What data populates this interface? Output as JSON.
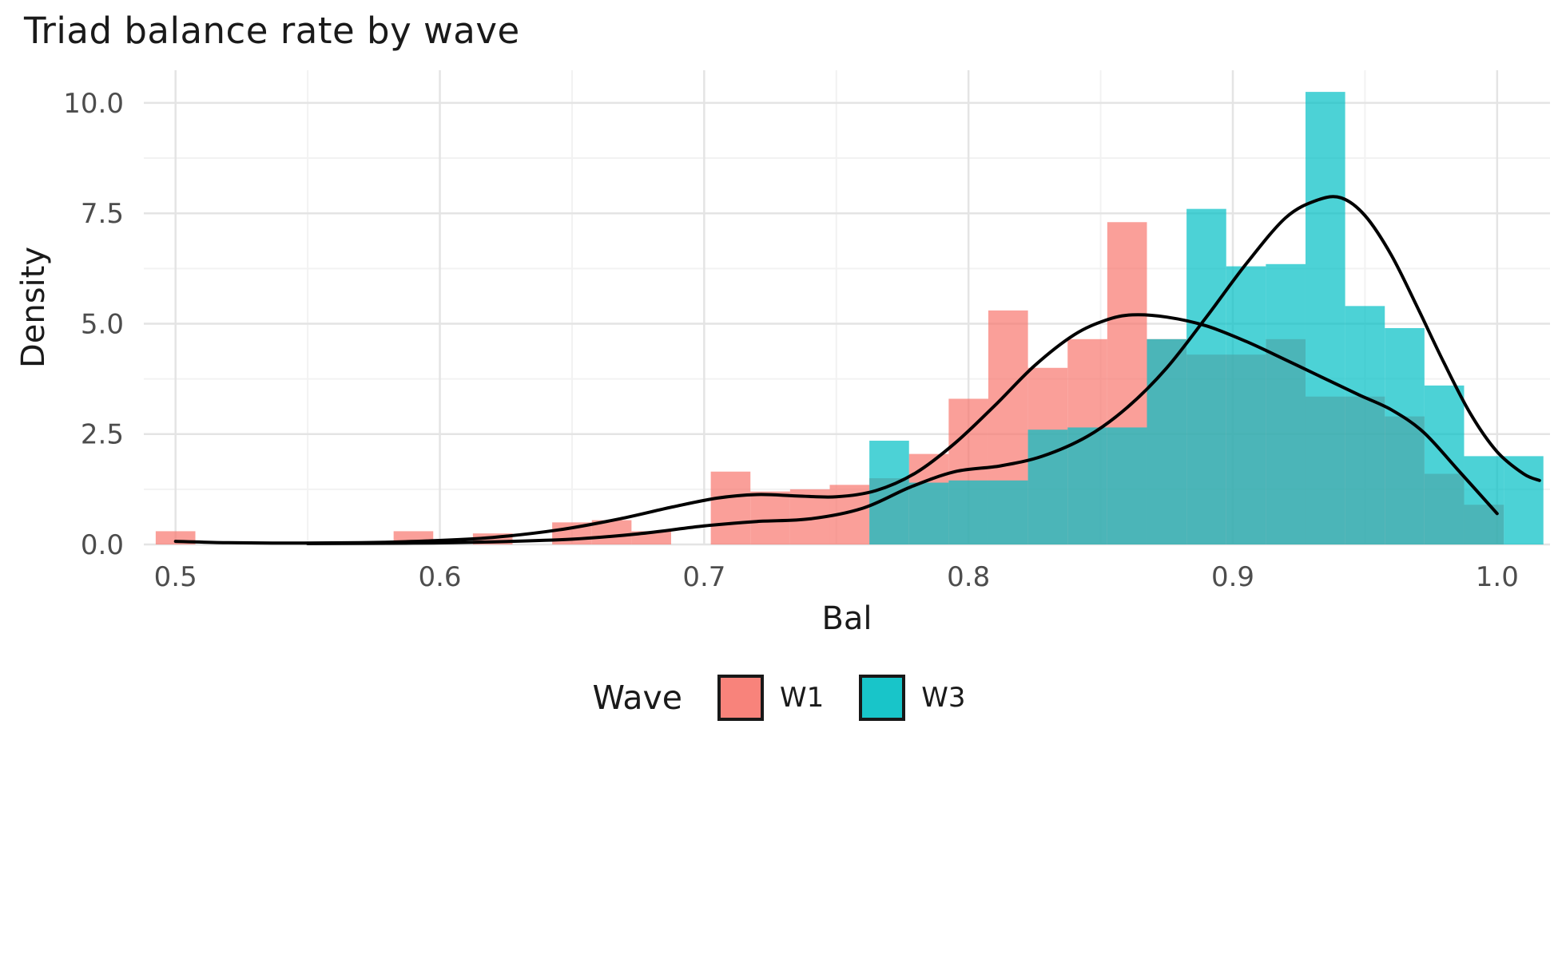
{
  "title": "Triad balance rate by wave",
  "chart_data": {
    "type": "histogram+density",
    "title": "Triad balance rate by wave",
    "xlabel": "Bal",
    "ylabel": "Density",
    "xlim": [
      0.488,
      1.02
    ],
    "ylim": [
      0,
      10.74
    ],
    "x_ticks": [
      0.5,
      0.6,
      0.7,
      0.8,
      0.9,
      1.0
    ],
    "x_tick_labels": [
      "0.5",
      "0.6",
      "0.7",
      "0.8",
      "0.9",
      "1.0"
    ],
    "y_ticks": [
      0.0,
      2.5,
      5.0,
      7.5,
      10.0
    ],
    "y_tick_labels": [
      "0.0",
      "2.5",
      "5.0",
      "7.5",
      "10.0"
    ],
    "x_minor_ticks": [
      0.55,
      0.65,
      0.75,
      0.85,
      0.95
    ],
    "y_minor_ticks": [
      1.25,
      3.75,
      6.25,
      8.75
    ],
    "grid": {
      "major_color": "#e4e4e4",
      "minor_color": "#f2f2f2",
      "on": true
    },
    "tick_label_color": "#4d4d4d",
    "bar_opacity": 0.7,
    "curve_color": "#000000",
    "curve_width": 4,
    "binwidth": 0.015,
    "legend": {
      "title": "Wave",
      "position": "bottom",
      "entries": [
        {
          "label": "W1",
          "color": "#F8766D"
        },
        {
          "label": "W3",
          "color": "#00BFC4"
        }
      ]
    },
    "series": [
      {
        "name": "W1",
        "color": "#F8766D",
        "bins": [
          [
            0.5,
            0.3
          ],
          [
            0.59,
            0.3
          ],
          [
            0.62,
            0.25
          ],
          [
            0.65,
            0.5
          ],
          [
            0.665,
            0.55
          ],
          [
            0.68,
            0.3
          ],
          [
            0.71,
            1.65
          ],
          [
            0.725,
            1.2
          ],
          [
            0.74,
            1.25
          ],
          [
            0.755,
            1.35
          ],
          [
            0.77,
            1.5
          ],
          [
            0.785,
            2.05
          ],
          [
            0.8,
            3.3
          ],
          [
            0.815,
            5.3
          ],
          [
            0.83,
            4.0
          ],
          [
            0.845,
            4.65
          ],
          [
            0.86,
            7.3
          ],
          [
            0.875,
            4.65
          ],
          [
            0.89,
            4.3
          ],
          [
            0.905,
            4.3
          ],
          [
            0.92,
            4.65
          ],
          [
            0.935,
            3.35
          ],
          [
            0.95,
            3.35
          ],
          [
            0.965,
            2.9
          ],
          [
            0.98,
            1.6
          ],
          [
            0.995,
            0.9
          ]
        ],
        "density": [
          [
            0.5,
            0.07
          ],
          [
            0.52,
            0.04
          ],
          [
            0.545,
            0.03
          ],
          [
            0.57,
            0.04
          ],
          [
            0.595,
            0.08
          ],
          [
            0.62,
            0.16
          ],
          [
            0.645,
            0.33
          ],
          [
            0.668,
            0.58
          ],
          [
            0.688,
            0.85
          ],
          [
            0.705,
            1.05
          ],
          [
            0.72,
            1.13
          ],
          [
            0.735,
            1.1
          ],
          [
            0.75,
            1.08
          ],
          [
            0.765,
            1.22
          ],
          [
            0.78,
            1.62
          ],
          [
            0.795,
            2.3
          ],
          [
            0.81,
            3.15
          ],
          [
            0.825,
            4.05
          ],
          [
            0.84,
            4.75
          ],
          [
            0.852,
            5.08
          ],
          [
            0.862,
            5.2
          ],
          [
            0.875,
            5.15
          ],
          [
            0.89,
            4.95
          ],
          [
            0.905,
            4.6
          ],
          [
            0.92,
            4.18
          ],
          [
            0.935,
            3.75
          ],
          [
            0.948,
            3.38
          ],
          [
            0.96,
            3.05
          ],
          [
            0.972,
            2.55
          ],
          [
            0.985,
            1.7
          ],
          [
            1.0,
            0.7
          ]
        ]
      },
      {
        "name": "W3",
        "color": "#00BFC4",
        "bins": [
          [
            0.77,
            2.35
          ],
          [
            0.785,
            1.4
          ],
          [
            0.8,
            1.45
          ],
          [
            0.815,
            1.45
          ],
          [
            0.83,
            2.6
          ],
          [
            0.845,
            2.65
          ],
          [
            0.86,
            2.65
          ],
          [
            0.875,
            4.65
          ],
          [
            0.89,
            7.6
          ],
          [
            0.905,
            6.3
          ],
          [
            0.92,
            6.35
          ],
          [
            0.935,
            10.25
          ],
          [
            0.95,
            5.4
          ],
          [
            0.965,
            4.9
          ],
          [
            0.98,
            3.6
          ],
          [
            0.995,
            2.0
          ],
          [
            1.01,
            2.0
          ]
        ],
        "density": [
          [
            0.55,
            0.02
          ],
          [
            0.59,
            0.03
          ],
          [
            0.62,
            0.06
          ],
          [
            0.65,
            0.12
          ],
          [
            0.675,
            0.24
          ],
          [
            0.7,
            0.42
          ],
          [
            0.72,
            0.52
          ],
          [
            0.74,
            0.58
          ],
          [
            0.76,
            0.82
          ],
          [
            0.778,
            1.3
          ],
          [
            0.795,
            1.65
          ],
          [
            0.812,
            1.78
          ],
          [
            0.828,
            2.0
          ],
          [
            0.845,
            2.45
          ],
          [
            0.86,
            3.1
          ],
          [
            0.875,
            4.0
          ],
          [
            0.89,
            5.15
          ],
          [
            0.905,
            6.35
          ],
          [
            0.92,
            7.4
          ],
          [
            0.932,
            7.8
          ],
          [
            0.941,
            7.85
          ],
          [
            0.95,
            7.45
          ],
          [
            0.96,
            6.55
          ],
          [
            0.97,
            5.35
          ],
          [
            0.98,
            4.1
          ],
          [
            0.99,
            2.95
          ],
          [
            1.0,
            2.1
          ],
          [
            1.01,
            1.6
          ],
          [
            1.016,
            1.45
          ]
        ]
      }
    ]
  }
}
